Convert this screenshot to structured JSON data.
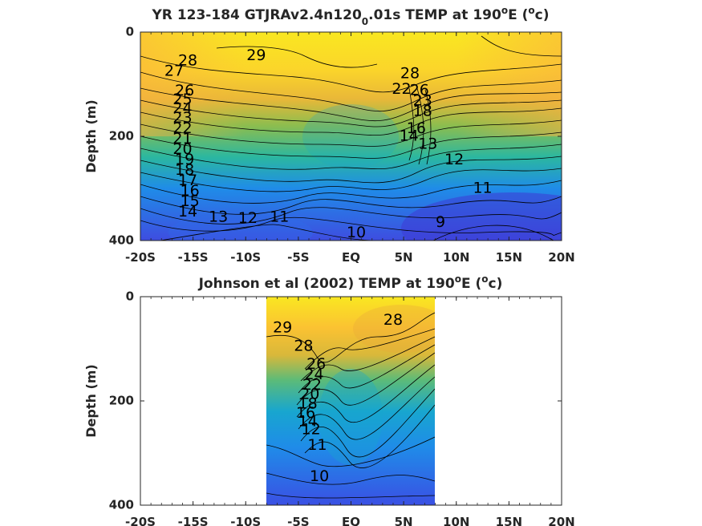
{
  "chart_data": [
    {
      "type": "contour",
      "title_main": "YR 123-184 GTJRAv2.4n120",
      "title_sub": "0",
      "title_rest": ".01s TEMP at 190",
      "title_sup": "o",
      "title_unit_pre": "E (",
      "title_unit_sup": "o",
      "title_unit_post": "c)",
      "ylabel": "Depth (m)",
      "xticks": [
        "-20S",
        "-15S",
        "-10S",
        "-5S",
        "EQ",
        "5N",
        "10N",
        "15N",
        "20N"
      ],
      "yticks": [
        "0",
        "200",
        "400"
      ],
      "xlim": [
        -20,
        20
      ],
      "ylim": [
        0,
        400
      ],
      "colormap": [
        "#3e26a8",
        "#3456f0",
        "#1f8ce8",
        "#1aa8c8",
        "#38b98f",
        "#8bbd4f",
        "#d1ba3c",
        "#fbc232",
        "#f9e721"
      ],
      "contour_labels": [
        {
          "text": "29",
          "x": -9.0,
          "y": 45
        },
        {
          "text": "28",
          "x": -15.5,
          "y": 55
        },
        {
          "text": "27",
          "x": -16.8,
          "y": 75
        },
        {
          "text": "26",
          "x": -15.8,
          "y": 113
        },
        {
          "text": "25",
          "x": -16.0,
          "y": 130
        },
        {
          "text": "24",
          "x": -16.0,
          "y": 147
        },
        {
          "text": "23",
          "x": -16.0,
          "y": 165
        },
        {
          "text": "22",
          "x": -16.0,
          "y": 185
        },
        {
          "text": "21",
          "x": -16.0,
          "y": 205
        },
        {
          "text": "20",
          "x": -16.0,
          "y": 225
        },
        {
          "text": "19",
          "x": -15.8,
          "y": 245
        },
        {
          "text": "18",
          "x": -15.8,
          "y": 265
        },
        {
          "text": "17",
          "x": -15.5,
          "y": 285
        },
        {
          "text": "16",
          "x": -15.3,
          "y": 305
        },
        {
          "text": "15",
          "x": -15.3,
          "y": 325
        },
        {
          "text": "14",
          "x": -15.5,
          "y": 345
        },
        {
          "text": "13",
          "x": -12.6,
          "y": 355
        },
        {
          "text": "12",
          "x": -9.8,
          "y": 358
        },
        {
          "text": "11",
          "x": -6.8,
          "y": 355
        },
        {
          "text": "10",
          "x": 0.5,
          "y": 385
        },
        {
          "text": "9",
          "x": 8.5,
          "y": 365
        },
        {
          "text": "28",
          "x": 5.6,
          "y": 80
        },
        {
          "text": "22",
          "x": 4.8,
          "y": 110
        },
        {
          "text": "26",
          "x": 6.5,
          "y": 112
        },
        {
          "text": "23",
          "x": 6.8,
          "y": 132
        },
        {
          "text": "18",
          "x": 6.8,
          "y": 152
        },
        {
          "text": "16",
          "x": 6.2,
          "y": 185
        },
        {
          "text": "14",
          "x": 5.5,
          "y": 200
        },
        {
          "text": "13",
          "x": 7.3,
          "y": 215
        },
        {
          "text": "12",
          "x": 9.8,
          "y": 245
        },
        {
          "text": "11",
          "x": 12.5,
          "y": 300
        }
      ]
    },
    {
      "type": "contour",
      "title_main": "Johnson et al (2002) TEMP at 190",
      "title_sup": "o",
      "title_unit_pre": "E (",
      "title_unit_sup": "o",
      "title_unit_post": "c)",
      "ylabel": "Depth (m)",
      "xticks": [
        "-20S",
        "-15S",
        "-10S",
        "-5S",
        "EQ",
        "5N",
        "10N",
        "15N",
        "20N"
      ],
      "yticks": [
        "0",
        "200",
        "400"
      ],
      "xlim": [
        -20,
        20
      ],
      "ylim": [
        0,
        400
      ],
      "data_lat_range": [
        -8,
        8
      ],
      "contour_labels": [
        {
          "text": "29",
          "x": -6.5,
          "y": 60
        },
        {
          "text": "28",
          "x": -4.5,
          "y": 95
        },
        {
          "text": "28",
          "x": 4.0,
          "y": 45
        },
        {
          "text": "26",
          "x": -3.3,
          "y": 130
        },
        {
          "text": "24",
          "x": -3.5,
          "y": 150
        },
        {
          "text": "22",
          "x": -3.7,
          "y": 170
        },
        {
          "text": "20",
          "x": -3.9,
          "y": 188
        },
        {
          "text": "18",
          "x": -4.1,
          "y": 206
        },
        {
          "text": "16",
          "x": -4.3,
          "y": 224
        },
        {
          "text": "14",
          "x": -4.1,
          "y": 240
        },
        {
          "text": "12",
          "x": -3.8,
          "y": 255
        },
        {
          "text": "11",
          "x": -3.2,
          "y": 285
        },
        {
          "text": "10",
          "x": -3.0,
          "y": 345
        }
      ]
    }
  ]
}
